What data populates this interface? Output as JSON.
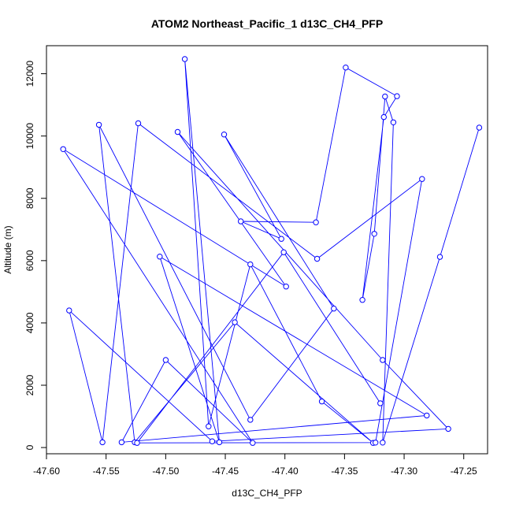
{
  "chart_data": {
    "type": "line",
    "title": "ATOM2 Northeast_Pacific_1 d13C_CH4_PFP",
    "xlabel": "d13C_CH4_PFP",
    "ylabel": "Altitude (m)",
    "xlim": [
      -47.6,
      -47.23
    ],
    "ylim": [
      -200,
      12900
    ],
    "x_ticks": [
      -47.6,
      -47.55,
      -47.5,
      -47.45,
      -47.4,
      -47.35,
      -47.3,
      -47.25
    ],
    "x_tick_labels": [
      "-47.60",
      "-47.55",
      "-47.50",
      "-47.45",
      "-47.40",
      "-47.35",
      "-47.30",
      "-47.25"
    ],
    "y_ticks": [
      0,
      2000,
      4000,
      6000,
      8000,
      10000,
      12000
    ],
    "y_tick_labels": [
      "0",
      "2000",
      "4000",
      "6000",
      "8000",
      "10000",
      "12000"
    ],
    "grid": false,
    "legend": "none",
    "series_color": "#0000ff",
    "marker": "open-circle",
    "series": [
      {
        "x": [
          -47.237,
          -47.27,
          -47.318,
          -47.309,
          -47.316,
          -47.325,
          -47.335,
          -47.317,
          -47.306,
          -47.349,
          -47.374,
          -47.437,
          -47.403,
          -47.451,
          -47.359,
          -47.429,
          -47.556,
          -47.526,
          -47.442,
          -47.326,
          -47.369,
          -47.429,
          -47.464,
          -47.484,
          -47.455,
          -47.505,
          -47.281,
          -47.537,
          -47.5,
          -47.427,
          -47.586,
          -47.399,
          -47.49,
          -47.318,
          -47.263,
          -47.461,
          -47.581,
          -47.553,
          -47.523,
          -47.373,
          -47.285,
          -47.324,
          -47.524,
          -47.401,
          -47.32
        ],
        "y": [
          10270,
          6120,
          160,
          10440,
          11270,
          6860,
          4740,
          10610,
          11280,
          12200,
          7230,
          7260,
          6700,
          10050,
          4460,
          890,
          10360,
          170,
          4020,
          150,
          1480,
          5880,
          680,
          12470,
          170,
          6130,
          1030,
          170,
          2810,
          150,
          9580,
          5170,
          10130,
          2810,
          600,
          200,
          4400,
          170,
          10410,
          6060,
          8620,
          160,
          150,
          6270,
          1420
        ]
      }
    ]
  }
}
